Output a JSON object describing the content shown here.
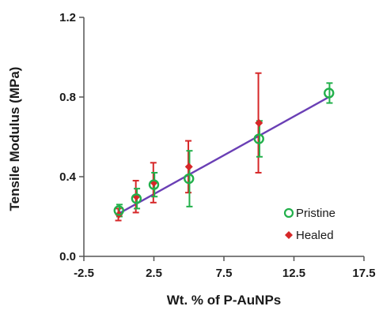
{
  "chart_data": {
    "type": "scatter",
    "xlabel": "Wt. % of P-AuNPs",
    "ylabel": "Tensile Modulus (MPa)",
    "xlim": [
      -2.5,
      17.5
    ],
    "ylim": [
      0.0,
      1.2
    ],
    "x_ticks": [
      "-2.5",
      "2.5",
      "7.5",
      "12.5",
      "17.5"
    ],
    "x_tick_values": [
      -2.5,
      2.5,
      7.5,
      12.5,
      17.5
    ],
    "y_ticks": [
      "0.0",
      "0.4",
      "0.8",
      "1.2"
    ],
    "y_tick_values": [
      0.0,
      0.4,
      0.8,
      1.2
    ],
    "grid": false,
    "legend_position": "bottom-right",
    "series": [
      {
        "name": "Pristine",
        "marker": "open-circle",
        "color": "#22b04b",
        "error_color": "#22b04b",
        "points": [
          {
            "x": 0,
            "y": 0.23,
            "err": 0.03
          },
          {
            "x": 1.25,
            "y": 0.29,
            "err": 0.05
          },
          {
            "x": 2.5,
            "y": 0.36,
            "err": 0.06
          },
          {
            "x": 5,
            "y": 0.39,
            "err": 0.14
          },
          {
            "x": 10,
            "y": 0.59,
            "err": 0.09
          },
          {
            "x": 15,
            "y": 0.82,
            "err": 0.05
          }
        ]
      },
      {
        "name": "Healed",
        "marker": "filled-diamond",
        "color": "#d62728",
        "error_color": "#d62728",
        "points": [
          {
            "x": 0,
            "y": 0.21,
            "err": 0.03
          },
          {
            "x": 1.25,
            "y": 0.3,
            "err": 0.08
          },
          {
            "x": 2.5,
            "y": 0.37,
            "err": 0.1
          },
          {
            "x": 5,
            "y": 0.45,
            "err": 0.13
          },
          {
            "x": 10,
            "y": 0.67,
            "err": 0.25
          }
        ]
      }
    ],
    "fit_line": {
      "color": "#6a3fb5",
      "from": {
        "x": 0,
        "y": 0.215
      },
      "to": {
        "x": 15,
        "y": 0.8
      }
    }
  }
}
